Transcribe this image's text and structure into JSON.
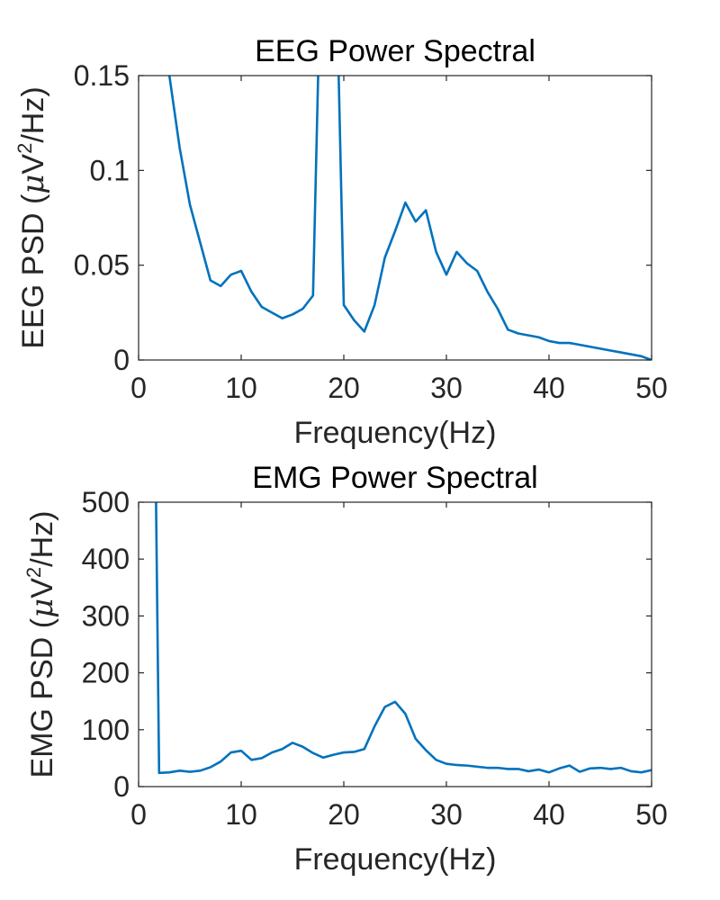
{
  "chart_data": [
    {
      "type": "line",
      "title": "EEG Power Spectral",
      "xlabel": "Frequency(Hz)",
      "ylabel_prefix": "EEG PSD (",
      "ylabel_mu": "μ",
      "ylabel_unit": "V",
      "ylabel_sup": "2",
      "ylabel_suffix": "/Hz)",
      "xlim": [
        0,
        50
      ],
      "ylim": [
        0,
        0.15
      ],
      "xticks": [
        0,
        10,
        20,
        30,
        40,
        50
      ],
      "xtick_labels": [
        "0",
        "10",
        "20",
        "30",
        "40",
        "50"
      ],
      "yticks": [
        0,
        0.05,
        0.1,
        0.15
      ],
      "ytick_labels": [
        "0",
        "0.05",
        "0.1",
        "0.15"
      ],
      "grid": false,
      "color": "#0072BD",
      "series": [
        {
          "x": [
            3,
            4,
            5,
            6,
            7,
            8,
            9,
            10,
            11,
            12,
            13,
            14,
            15,
            16,
            17,
            17.5,
            18,
            19,
            19.5,
            20,
            21,
            22,
            23,
            24,
            25,
            26,
            27,
            28,
            29,
            30,
            31,
            32,
            33,
            34,
            35,
            36,
            37,
            38,
            39,
            40,
            41,
            42,
            43,
            44,
            45,
            46,
            47,
            48,
            49,
            50
          ],
          "values": [
            0.15,
            0.112,
            0.082,
            0.062,
            0.042,
            0.039,
            0.045,
            0.047,
            0.036,
            0.028,
            0.025,
            0.022,
            0.024,
            0.027,
            0.034,
            0.15,
            0.2,
            0.2,
            0.15,
            0.029,
            0.021,
            0.015,
            0.029,
            0.054,
            0.068,
            0.083,
            0.073,
            0.079,
            0.057,
            0.045,
            0.057,
            0.051,
            0.047,
            0.036,
            0.027,
            0.016,
            0.014,
            0.013,
            0.012,
            0.01,
            0.009,
            0.009,
            0.008,
            0.007,
            0.006,
            0.005,
            0.004,
            0.003,
            0.002,
            0.0
          ]
        }
      ]
    },
    {
      "type": "line",
      "title": "EMG Power Spectral",
      "xlabel": "Frequency(Hz)",
      "ylabel_prefix": "EMG PSD (",
      "ylabel_mu": "μ",
      "ylabel_unit": "V",
      "ylabel_sup": "2",
      "ylabel_suffix": "/Hz)",
      "xlim": [
        0,
        50
      ],
      "ylim": [
        0,
        500
      ],
      "xticks": [
        0,
        10,
        20,
        30,
        40,
        50
      ],
      "xtick_labels": [
        "0",
        "10",
        "20",
        "30",
        "40",
        "50"
      ],
      "yticks": [
        0,
        100,
        200,
        300,
        400,
        500
      ],
      "ytick_labels": [
        "0",
        "100",
        "200",
        "300",
        "400",
        "500"
      ],
      "grid": false,
      "color": "#0072BD",
      "series": [
        {
          "x": [
            1.7,
            2,
            3,
            4,
            5,
            6,
            7,
            8,
            9,
            10,
            11,
            12,
            13,
            14,
            15,
            16,
            17,
            18,
            19,
            20,
            21,
            22,
            23,
            24,
            25,
            26,
            27,
            28,
            29,
            30,
            31,
            32,
            33,
            34,
            35,
            36,
            37,
            38,
            39,
            40,
            41,
            42,
            43,
            44,
            45,
            46,
            47,
            48,
            49,
            50
          ],
          "values": [
            500,
            24,
            25,
            28,
            26,
            28,
            34,
            44,
            60,
            63,
            47,
            50,
            60,
            66,
            77,
            70,
            59,
            51,
            56,
            60,
            61,
            66,
            106,
            140,
            149,
            128,
            84,
            64,
            47,
            40,
            38,
            37,
            35,
            33,
            33,
            31,
            31,
            27,
            30,
            25,
            32,
            37,
            26,
            32,
            33,
            31,
            33,
            27,
            25,
            29
          ]
        }
      ]
    }
  ]
}
